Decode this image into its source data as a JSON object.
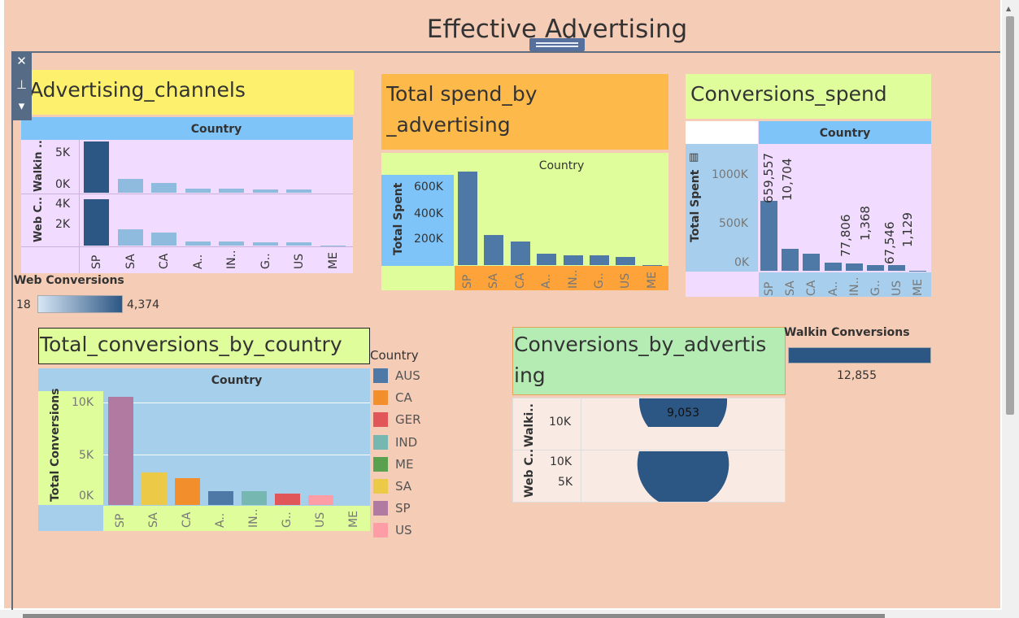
{
  "dashboard": {
    "title": "Effective Advertising"
  },
  "toolbar": {
    "close_glyph": "✕",
    "pin_glyph": "⊥",
    "more_glyph": "▾"
  },
  "countries": [
    "SP",
    "SA",
    "CA",
    "A..",
    "IN..",
    "G..",
    "US",
    "ME"
  ],
  "advertising_channels": {
    "title": "Advertising_channels",
    "column_header": "Country",
    "row_walkin": "Walkin ..",
    "row_web": "Web C..",
    "walkin_ticks": [
      "5K",
      "0K"
    ],
    "web_ticks": [
      "4K",
      "2K"
    ],
    "legend_title": "Web Conversions",
    "legend_min": "18",
    "legend_max": "4,374",
    "colors": {
      "header": "#7fc4f8",
      "plot": "#f1dcff",
      "dark": "#2c5684",
      "light": "#8fbbdf"
    }
  },
  "total_spend": {
    "title_line1": "Total spend_by",
    "title_line2": "_advertising",
    "column_header": "Country",
    "ylabel": "Total Spent",
    "y_ticks": [
      "600K",
      "400K",
      "200K"
    ],
    "colors": {
      "title_bg": "#fdb94a",
      "plot": "#dffd9b",
      "axis": "#7fc4f8",
      "bar": "#4e79a7",
      "xbg": "#fda33a"
    }
  },
  "conversions_spend": {
    "title": "Conversions_spend",
    "column_header": "Country",
    "ylabel": "Total Spent",
    "y_ticks": [
      "1000K",
      "500K",
      "0K"
    ],
    "data_labels": [
      "659,557",
      "10,704",
      "77,806",
      "1,368",
      "67,546",
      "1,129"
    ],
    "colors": {
      "title_bg": "#dffd9b",
      "header": "#7fc4f8",
      "plot": "#f1dcff",
      "axis": "#a7cfed",
      "bar": "#4e79a7"
    }
  },
  "total_conversions": {
    "title": "Total_conversions_by_country",
    "column_header": "Country",
    "ylabel": "Total Conversions",
    "y_ticks": [
      "10K",
      "5K",
      "0K"
    ],
    "colors": {
      "title_bg": "#dffd9b",
      "plot": "#a6cfec",
      "axis": "#dffd9b"
    }
  },
  "legend": {
    "title": "Country",
    "items": [
      {
        "label": "AUS",
        "color": "#4e79a7"
      },
      {
        "label": "CA",
        "color": "#f28e2b"
      },
      {
        "label": "GER",
        "color": "#e15759"
      },
      {
        "label": "IND",
        "color": "#76b7b2"
      },
      {
        "label": "ME",
        "color": "#59a14f"
      },
      {
        "label": "SA",
        "color": "#edc948"
      },
      {
        "label": "SP",
        "color": "#b07aa1"
      },
      {
        "label": "US",
        "color": "#ff9da7"
      }
    ]
  },
  "conversions_by_advertising": {
    "title_line1": "Conversions_by_advertis",
    "title_line2": "ing",
    "row_walkin": "Walki..",
    "row_web": "Web C..",
    "walkin_tick": "10K",
    "web_ticks": [
      "10K",
      "5K"
    ],
    "value_label": "9,053",
    "walkin_legend_title": "Walkin Conversions",
    "walkin_legend_value": "12,855",
    "colors": {
      "title_bg": "#b5ecb4",
      "plot": "#f9ebe4",
      "shape": "#2c5684"
    }
  },
  "chart_data": [
    {
      "type": "bar",
      "title": "Advertising_channels",
      "categories": [
        "SP",
        "SA",
        "CA",
        "A..",
        "IN..",
        "G..",
        "US",
        "ME"
      ],
      "series": [
        {
          "name": "Walkin ..",
          "values": [
            5800,
            1600,
            1100,
            500,
            500,
            400,
            400,
            0
          ]
        },
        {
          "name": "Web C..",
          "values": [
            4374,
            1500,
            1200,
            380,
            380,
            300,
            300,
            18
          ]
        }
      ]
    },
    {
      "type": "bar",
      "title": "Total spend_by _advertising",
      "ylabel": "Total Spent",
      "categories": [
        "SP",
        "SA",
        "CA",
        "A..",
        "IN..",
        "G..",
        "US",
        "ME"
      ],
      "values": [
        660000,
        210000,
        165000,
        78000,
        68000,
        68000,
        58000,
        1500
      ],
      "ylim": [
        0,
        700000
      ]
    },
    {
      "type": "bar",
      "title": "Conversions_spend",
      "ylabel": "Total Spent",
      "categories": [
        "SP",
        "SA",
        "CA",
        "A..",
        "IN..",
        "G..",
        "US",
        "ME"
      ],
      "values": [
        659557,
        205000,
        160000,
        77806,
        67546,
        55000,
        55000,
        1129
      ],
      "ylim": [
        0,
        1200000
      ]
    },
    {
      "type": "bar",
      "title": "Total_conversions_by_country",
      "ylabel": "Total Conversions",
      "categories": [
        "SP",
        "SA",
        "CA",
        "A..",
        "IN..",
        "G..",
        "US",
        "ME"
      ],
      "values": [
        10704,
        3200,
        2650,
        1368,
        1368,
        1129,
        1000,
        0
      ],
      "ylim": [
        0,
        11500
      ]
    }
  ]
}
